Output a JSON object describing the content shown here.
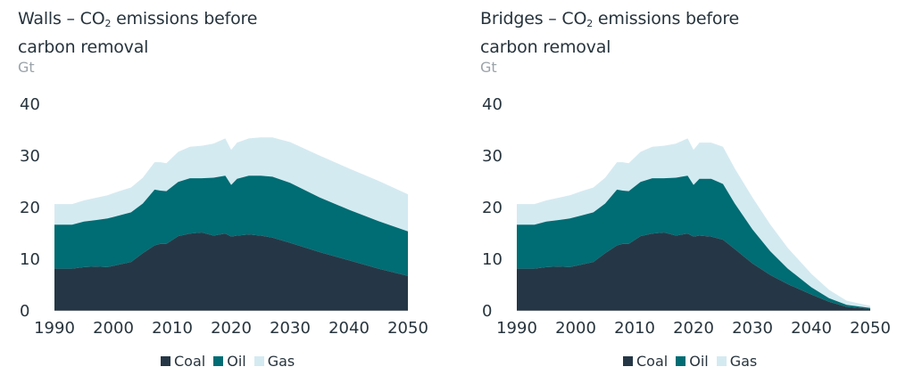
{
  "colors": {
    "coal": "#253746",
    "oil": "#006c73",
    "gas": "#d4eaf1",
    "axis": "#27343d"
  },
  "unit": "Gt",
  "legend": {
    "coal": "Coal",
    "oil": "Oil",
    "gas": "Gas"
  },
  "chart_data": [
    {
      "type": "area",
      "stacked": true,
      "title_pre": "Walls – CO",
      "title_sub": "2",
      "title_post": " emissions before",
      "title_line2": "carbon removal",
      "ylabel": "Gt",
      "xlim": [
        1990,
        2050
      ],
      "ylim": [
        0,
        40
      ],
      "xticks": [
        1990,
        2000,
        2010,
        2020,
        2030,
        2040,
        2050
      ],
      "yticks": [
        0,
        10,
        20,
        30,
        40
      ],
      "x": [
        1990,
        1993,
        1995,
        1997,
        1999,
        2001,
        2003,
        2005,
        2007,
        2008,
        2009,
        2011,
        2013,
        2015,
        2017,
        2019,
        2020,
        2021,
        2023,
        2025,
        2027,
        2030,
        2035,
        2040,
        2045,
        2050
      ],
      "series": [
        {
          "name": "Coal",
          "values": [
            8.0,
            8.0,
            8.3,
            8.4,
            8.3,
            8.8,
            9.3,
            11.0,
            12.5,
            12.8,
            12.8,
            14.3,
            14.8,
            15.0,
            14.4,
            14.8,
            14.2,
            14.4,
            14.6,
            14.4,
            14.0,
            13.0,
            11.2,
            9.6,
            8.0,
            6.6
          ]
        },
        {
          "name": "Oil",
          "values": [
            8.5,
            8.5,
            8.8,
            9.0,
            9.4,
            9.5,
            9.6,
            9.6,
            10.8,
            10.3,
            10.2,
            10.5,
            10.7,
            10.5,
            11.2,
            11.2,
            10.0,
            11.0,
            11.4,
            11.6,
            11.8,
            11.6,
            10.6,
            9.8,
            9.2,
            8.6
          ]
        },
        {
          "name": "Gas",
          "values": [
            4.0,
            4.0,
            4.1,
            4.3,
            4.5,
            4.7,
            4.8,
            5.0,
            5.3,
            5.5,
            5.4,
            5.8,
            6.1,
            6.3,
            6.6,
            7.2,
            6.8,
            7.0,
            7.2,
            7.4,
            7.6,
            7.9,
            8.1,
            8.0,
            7.8,
            7.2
          ]
        }
      ]
    },
    {
      "type": "area",
      "stacked": true,
      "title_pre": "Bridges – CO",
      "title_sub": "2",
      "title_post": " emissions before",
      "title_line2": "carbon removal",
      "ylabel": "Gt",
      "xlim": [
        1990,
        2050
      ],
      "ylim": [
        0,
        40
      ],
      "xticks": [
        1990,
        2000,
        2010,
        2020,
        2030,
        2040,
        2050
      ],
      "yticks": [
        0,
        10,
        20,
        30,
        40
      ],
      "x": [
        1990,
        1993,
        1995,
        1997,
        1999,
        2001,
        2003,
        2005,
        2007,
        2008,
        2009,
        2011,
        2013,
        2015,
        2017,
        2019,
        2020,
        2021,
        2023,
        2025,
        2027,
        2030,
        2033,
        2036,
        2040,
        2043,
        2046,
        2050
      ],
      "series": [
        {
          "name": "Coal",
          "values": [
            8.0,
            8.0,
            8.3,
            8.4,
            8.3,
            8.8,
            9.3,
            11.0,
            12.5,
            12.8,
            12.8,
            14.3,
            14.8,
            15.0,
            14.4,
            14.8,
            14.2,
            14.4,
            14.2,
            13.6,
            11.8,
            9.0,
            6.8,
            5.0,
            3.0,
            1.6,
            0.6,
            0.2
          ]
        },
        {
          "name": "Oil",
          "values": [
            8.5,
            8.5,
            8.8,
            9.0,
            9.4,
            9.5,
            9.6,
            9.6,
            10.8,
            10.3,
            10.2,
            10.5,
            10.7,
            10.5,
            11.2,
            11.2,
            10.0,
            11.0,
            11.2,
            10.8,
            8.8,
            6.6,
            4.6,
            3.0,
            1.4,
            0.7,
            0.4,
            0.2
          ]
        },
        {
          "name": "Gas",
          "values": [
            4.0,
            4.0,
            4.1,
            4.3,
            4.5,
            4.7,
            4.8,
            5.0,
            5.3,
            5.5,
            5.4,
            5.8,
            6.1,
            6.3,
            6.6,
            7.2,
            6.8,
            7.0,
            7.0,
            7.2,
            6.8,
            6.2,
            5.2,
            4.0,
            2.6,
            1.6,
            0.8,
            0.4
          ]
        }
      ]
    }
  ]
}
